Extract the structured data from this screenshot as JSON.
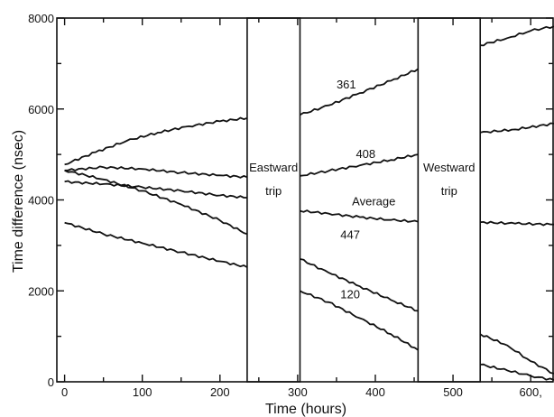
{
  "chart_data": {
    "type": "line",
    "xlabel": "Time (hours)",
    "ylabel": "Time difference (nsec)",
    "xlim": [
      -10,
      630
    ],
    "ylim": [
      0,
      8000
    ],
    "x_ticks": [
      0,
      100,
      200,
      300,
      400,
      500,
      600
    ],
    "x_tick_labels": [
      "0",
      "100",
      "200",
      "300",
      "400",
      "500",
      "600,"
    ],
    "y_ticks": [
      0,
      2000,
      4000,
      6000,
      8000
    ],
    "y_tick_labels": [
      "0",
      "2000",
      "4000",
      "6000",
      "8000"
    ],
    "grid": false,
    "trips": [
      {
        "label": "Eastward trip",
        "lines": [
          "Eastward",
          "trip"
        ],
        "x_start": 235,
        "x_end": 303
      },
      {
        "label": "Westward trip",
        "lines": [
          "Westward",
          "trip"
        ],
        "x_start": 455,
        "x_end": 535
      }
    ],
    "series": [
      {
        "name": "361",
        "label_at": [
          350,
          6450
        ],
        "segments": [
          [
            [
              0,
              4780
            ],
            [
              40,
              5050
            ],
            [
              80,
              5300
            ],
            [
              120,
              5480
            ],
            [
              160,
              5620
            ],
            [
              200,
              5730
            ],
            [
              235,
              5800
            ]
          ],
          [
            [
              303,
              5870
            ],
            [
              340,
              6080
            ],
            [
              380,
              6350
            ],
            [
              420,
              6620
            ],
            [
              455,
              6880
            ]
          ],
          [
            [
              535,
              7400
            ],
            [
              570,
              7560
            ],
            [
              600,
              7720
            ],
            [
              630,
              7820
            ]
          ]
        ]
      },
      {
        "name": "408",
        "label_at": [
          375,
          4920
        ],
        "segments": [
          [
            [
              0,
              4650
            ],
            [
              50,
              4720
            ],
            [
              100,
              4680
            ],
            [
              150,
              4600
            ],
            [
              200,
              4540
            ],
            [
              235,
              4500
            ]
          ],
          [
            [
              303,
              4530
            ],
            [
              340,
              4640
            ],
            [
              380,
              4760
            ],
            [
              420,
              4880
            ],
            [
              455,
              5000
            ]
          ],
          [
            [
              535,
              5480
            ],
            [
              580,
              5550
            ],
            [
              630,
              5680
            ]
          ]
        ]
      },
      {
        "name": "Average",
        "label_at": [
          370,
          3880
        ],
        "segments": [
          [
            [
              0,
              4400
            ],
            [
              50,
              4350
            ],
            [
              100,
              4280
            ],
            [
              150,
              4200
            ],
            [
              200,
              4100
            ],
            [
              235,
              4050
            ]
          ],
          [
            [
              303,
              3760
            ],
            [
              340,
              3700
            ],
            [
              380,
              3620
            ],
            [
              420,
              3560
            ],
            [
              455,
              3520
            ]
          ],
          [
            [
              535,
              3510
            ],
            [
              580,
              3480
            ],
            [
              630,
              3460
            ]
          ]
        ]
      },
      {
        "name": "447",
        "label_at": [
          355,
          3150
        ],
        "segments": [
          [
            [
              0,
              4650
            ],
            [
              50,
              4450
            ],
            [
              100,
              4200
            ],
            [
              150,
              3900
            ],
            [
              200,
              3550
            ],
            [
              235,
              3250
            ]
          ],
          [
            [
              303,
              2700
            ],
            [
              340,
              2400
            ],
            [
              380,
              2100
            ],
            [
              420,
              1800
            ],
            [
              455,
              1560
            ]
          ],
          [
            [
              535,
              1050
            ],
            [
              570,
              800
            ],
            [
              600,
              450
            ],
            [
              630,
              180
            ]
          ]
        ]
      },
      {
        "name": "120",
        "label_at": [
          355,
          1840
        ],
        "segments": [
          [
            [
              0,
              3500
            ],
            [
              50,
              3250
            ],
            [
              100,
              3050
            ],
            [
              150,
              2850
            ],
            [
              200,
              2650
            ],
            [
              235,
              2520
            ]
          ],
          [
            [
              303,
              2000
            ],
            [
              340,
              1750
            ],
            [
              380,
              1400
            ],
            [
              420,
              1050
            ],
            [
              455,
              700
            ]
          ],
          [
            [
              535,
              380
            ],
            [
              570,
              250
            ],
            [
              600,
              130
            ],
            [
              630,
              40
            ]
          ]
        ]
      }
    ]
  }
}
